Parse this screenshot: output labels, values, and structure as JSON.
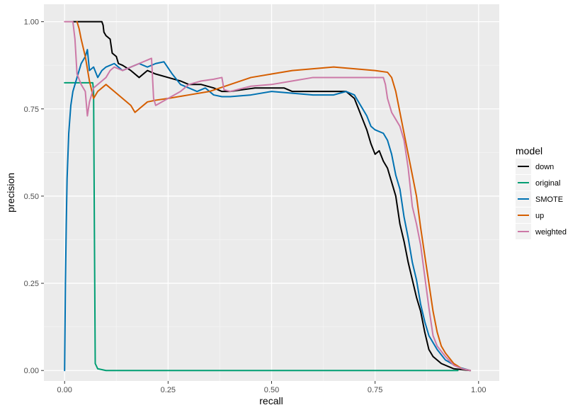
{
  "chart_data": {
    "type": "line",
    "title": "",
    "xlabel": "recall",
    "ylabel": "precision",
    "xlim": [
      -0.05,
      1.05
    ],
    "ylim": [
      -0.03,
      1.05
    ],
    "x_ticks": [
      0.0,
      0.25,
      0.5,
      0.75,
      1.0
    ],
    "x_tick_labels": [
      "0.00",
      "0.25",
      "0.50",
      "0.75",
      "1.00"
    ],
    "y_ticks": [
      0.0,
      0.25,
      0.5,
      0.75,
      1.0
    ],
    "y_tick_labels": [
      "0.00",
      "0.25",
      "0.50",
      "0.75",
      "1.00"
    ],
    "grid": true,
    "legend": {
      "title": "model",
      "position": "right"
    },
    "series": [
      {
        "name": "down",
        "color": "#000000",
        "points": [
          [
            0.02,
            1.0
          ],
          [
            0.09,
            1.0
          ],
          [
            0.093,
            0.99
          ],
          [
            0.095,
            0.97
          ],
          [
            0.1,
            0.96
          ],
          [
            0.11,
            0.95
          ],
          [
            0.115,
            0.91
          ],
          [
            0.125,
            0.9
          ],
          [
            0.13,
            0.88
          ],
          [
            0.14,
            0.875
          ],
          [
            0.16,
            0.86
          ],
          [
            0.18,
            0.84
          ],
          [
            0.2,
            0.86
          ],
          [
            0.22,
            0.85
          ],
          [
            0.25,
            0.84
          ],
          [
            0.28,
            0.83
          ],
          [
            0.3,
            0.82
          ],
          [
            0.33,
            0.82
          ],
          [
            0.36,
            0.81
          ],
          [
            0.38,
            0.8
          ],
          [
            0.4,
            0.8
          ],
          [
            0.43,
            0.805
          ],
          [
            0.46,
            0.81
          ],
          [
            0.5,
            0.81
          ],
          [
            0.53,
            0.81
          ],
          [
            0.55,
            0.8
          ],
          [
            0.58,
            0.8
          ],
          [
            0.62,
            0.8
          ],
          [
            0.65,
            0.8
          ],
          [
            0.68,
            0.8
          ],
          [
            0.7,
            0.78
          ],
          [
            0.71,
            0.75
          ],
          [
            0.72,
            0.72
          ],
          [
            0.73,
            0.69
          ],
          [
            0.74,
            0.65
          ],
          [
            0.75,
            0.62
          ],
          [
            0.76,
            0.63
          ],
          [
            0.77,
            0.6
          ],
          [
            0.78,
            0.58
          ],
          [
            0.79,
            0.54
          ],
          [
            0.8,
            0.5
          ],
          [
            0.81,
            0.42
          ],
          [
            0.82,
            0.37
          ],
          [
            0.83,
            0.31
          ],
          [
            0.84,
            0.26
          ],
          [
            0.85,
            0.21
          ],
          [
            0.86,
            0.17
          ],
          [
            0.87,
            0.11
          ],
          [
            0.88,
            0.06
          ],
          [
            0.89,
            0.04
          ],
          [
            0.91,
            0.02
          ],
          [
            0.94,
            0.005
          ],
          [
            0.98,
            0.0
          ]
        ]
      },
      {
        "name": "original",
        "color": "#009E73",
        "points": [
          [
            0.0,
            0.825
          ],
          [
            0.02,
            0.825
          ],
          [
            0.068,
            0.825
          ],
          [
            0.07,
            0.8
          ],
          [
            0.072,
            0.4
          ],
          [
            0.074,
            0.02
          ],
          [
            0.08,
            0.005
          ],
          [
            0.1,
            0.0
          ],
          [
            0.3,
            0.0
          ],
          [
            0.5,
            0.0
          ],
          [
            0.7,
            0.0
          ],
          [
            0.9,
            0.0
          ],
          [
            0.95,
            0.0
          ]
        ]
      },
      {
        "name": "SMOTE",
        "color": "#0072B2",
        "points": [
          [
            0.0,
            0.0
          ],
          [
            0.002,
            0.25
          ],
          [
            0.004,
            0.42
          ],
          [
            0.006,
            0.55
          ],
          [
            0.01,
            0.68
          ],
          [
            0.015,
            0.76
          ],
          [
            0.02,
            0.8
          ],
          [
            0.03,
            0.84
          ],
          [
            0.04,
            0.88
          ],
          [
            0.05,
            0.9
          ],
          [
            0.055,
            0.92
          ],
          [
            0.06,
            0.86
          ],
          [
            0.07,
            0.87
          ],
          [
            0.08,
            0.84
          ],
          [
            0.09,
            0.86
          ],
          [
            0.1,
            0.87
          ],
          [
            0.12,
            0.88
          ],
          [
            0.14,
            0.86
          ],
          [
            0.16,
            0.87
          ],
          [
            0.18,
            0.88
          ],
          [
            0.2,
            0.87
          ],
          [
            0.22,
            0.88
          ],
          [
            0.24,
            0.885
          ],
          [
            0.26,
            0.85
          ],
          [
            0.28,
            0.82
          ],
          [
            0.3,
            0.81
          ],
          [
            0.32,
            0.8
          ],
          [
            0.34,
            0.81
          ],
          [
            0.36,
            0.79
          ],
          [
            0.38,
            0.785
          ],
          [
            0.4,
            0.785
          ],
          [
            0.45,
            0.79
          ],
          [
            0.5,
            0.8
          ],
          [
            0.55,
            0.795
          ],
          [
            0.6,
            0.79
          ],
          [
            0.65,
            0.79
          ],
          [
            0.68,
            0.8
          ],
          [
            0.7,
            0.79
          ],
          [
            0.71,
            0.77
          ],
          [
            0.72,
            0.75
          ],
          [
            0.73,
            0.73
          ],
          [
            0.74,
            0.7
          ],
          [
            0.75,
            0.69
          ],
          [
            0.77,
            0.68
          ],
          [
            0.78,
            0.66
          ],
          [
            0.79,
            0.62
          ],
          [
            0.8,
            0.56
          ],
          [
            0.81,
            0.52
          ],
          [
            0.82,
            0.44
          ],
          [
            0.83,
            0.38
          ],
          [
            0.84,
            0.31
          ],
          [
            0.85,
            0.26
          ],
          [
            0.86,
            0.19
          ],
          [
            0.87,
            0.14
          ],
          [
            0.88,
            0.1
          ],
          [
            0.89,
            0.08
          ],
          [
            0.9,
            0.06
          ],
          [
            0.92,
            0.03
          ],
          [
            0.95,
            0.01
          ],
          [
            0.98,
            0.0
          ]
        ]
      },
      {
        "name": "up",
        "color": "#D55E00",
        "points": [
          [
            0.03,
            1.0
          ],
          [
            0.035,
            0.98
          ],
          [
            0.04,
            0.95
          ],
          [
            0.05,
            0.9
          ],
          [
            0.06,
            0.83
          ],
          [
            0.07,
            0.78
          ],
          [
            0.08,
            0.8
          ],
          [
            0.1,
            0.82
          ],
          [
            0.12,
            0.8
          ],
          [
            0.14,
            0.78
          ],
          [
            0.16,
            0.76
          ],
          [
            0.17,
            0.74
          ],
          [
            0.18,
            0.75
          ],
          [
            0.2,
            0.77
          ],
          [
            0.22,
            0.775
          ],
          [
            0.25,
            0.78
          ],
          [
            0.3,
            0.79
          ],
          [
            0.35,
            0.8
          ],
          [
            0.4,
            0.82
          ],
          [
            0.45,
            0.84
          ],
          [
            0.5,
            0.85
          ],
          [
            0.55,
            0.86
          ],
          [
            0.6,
            0.865
          ],
          [
            0.65,
            0.87
          ],
          [
            0.7,
            0.865
          ],
          [
            0.75,
            0.86
          ],
          [
            0.78,
            0.855
          ],
          [
            0.79,
            0.84
          ],
          [
            0.8,
            0.8
          ],
          [
            0.81,
            0.74
          ],
          [
            0.82,
            0.68
          ],
          [
            0.83,
            0.62
          ],
          [
            0.84,
            0.56
          ],
          [
            0.85,
            0.5
          ],
          [
            0.86,
            0.41
          ],
          [
            0.87,
            0.33
          ],
          [
            0.88,
            0.25
          ],
          [
            0.89,
            0.17
          ],
          [
            0.9,
            0.11
          ],
          [
            0.91,
            0.07
          ],
          [
            0.92,
            0.05
          ],
          [
            0.94,
            0.02
          ],
          [
            0.96,
            0.005
          ],
          [
            0.98,
            0.0
          ]
        ]
      },
      {
        "name": "weighted",
        "color": "#CC79A7",
        "points": [
          [
            0.0,
            1.0
          ],
          [
            0.02,
            1.0
          ],
          [
            0.025,
            0.95
          ],
          [
            0.03,
            0.85
          ],
          [
            0.04,
            0.82
          ],
          [
            0.05,
            0.8
          ],
          [
            0.055,
            0.73
          ],
          [
            0.06,
            0.77
          ],
          [
            0.07,
            0.81
          ],
          [
            0.09,
            0.83
          ],
          [
            0.1,
            0.84
          ],
          [
            0.11,
            0.86
          ],
          [
            0.12,
            0.87
          ],
          [
            0.14,
            0.86
          ],
          [
            0.16,
            0.87
          ],
          [
            0.18,
            0.88
          ],
          [
            0.2,
            0.89
          ],
          [
            0.21,
            0.895
          ],
          [
            0.215,
            0.78
          ],
          [
            0.22,
            0.76
          ],
          [
            0.25,
            0.78
          ],
          [
            0.28,
            0.8
          ],
          [
            0.3,
            0.82
          ],
          [
            0.33,
            0.83
          ],
          [
            0.36,
            0.835
          ],
          [
            0.38,
            0.84
          ],
          [
            0.385,
            0.805
          ],
          [
            0.4,
            0.8
          ],
          [
            0.45,
            0.815
          ],
          [
            0.5,
            0.82
          ],
          [
            0.55,
            0.83
          ],
          [
            0.6,
            0.84
          ],
          [
            0.65,
            0.84
          ],
          [
            0.7,
            0.84
          ],
          [
            0.75,
            0.84
          ],
          [
            0.77,
            0.84
          ],
          [
            0.775,
            0.82
          ],
          [
            0.78,
            0.78
          ],
          [
            0.79,
            0.74
          ],
          [
            0.8,
            0.72
          ],
          [
            0.81,
            0.7
          ],
          [
            0.82,
            0.66
          ],
          [
            0.83,
            0.58
          ],
          [
            0.84,
            0.47
          ],
          [
            0.85,
            0.42
          ],
          [
            0.86,
            0.36
          ],
          [
            0.87,
            0.27
          ],
          [
            0.88,
            0.18
          ],
          [
            0.89,
            0.1
          ],
          [
            0.9,
            0.07
          ],
          [
            0.92,
            0.04
          ],
          [
            0.94,
            0.015
          ],
          [
            0.96,
            0.005
          ],
          [
            0.98,
            0.0
          ]
        ]
      }
    ]
  }
}
